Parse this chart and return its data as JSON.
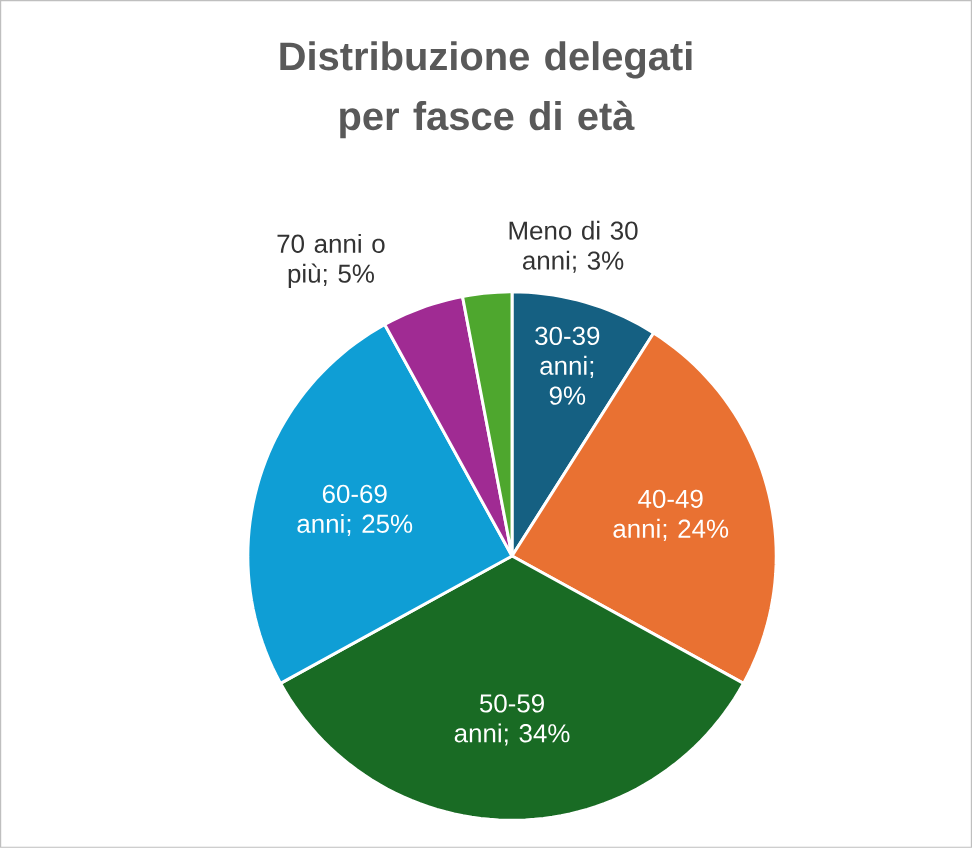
{
  "chart_data": {
    "type": "pie",
    "title": "Distribuzione delegati per fasce di età",
    "categories": [
      "30-39 anni",
      "40-49 anni",
      "50-59 anni",
      "60-69 anni",
      "70 anni o più",
      "Meno di 30 anni"
    ],
    "values": [
      9,
      24,
      34,
      25,
      5,
      3
    ],
    "value_labels": [
      "; 9%",
      "; 24%",
      "; 34%",
      "; 25%",
      "; 5%",
      "; 3%"
    ],
    "colors": [
      "#156082",
      "#e97132",
      "#196b24",
      "#0f9ed5",
      "#a02b93",
      "#4ea72e"
    ]
  }
}
